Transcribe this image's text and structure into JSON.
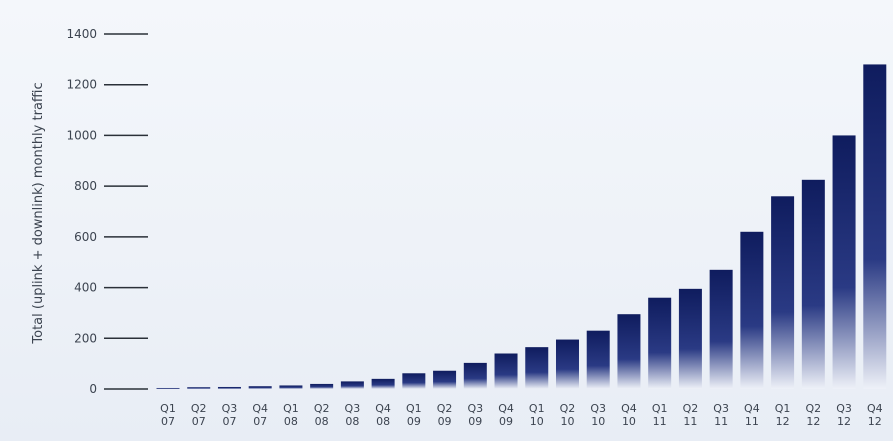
{
  "chart_data": {
    "type": "bar",
    "title": "",
    "xlabel": "",
    "ylabel": "Total (uplink + downlink) monthly traffic",
    "ylim": [
      0,
      1400
    ],
    "yticks": [
      0,
      200,
      400,
      600,
      800,
      1000,
      1200,
      1400
    ],
    "categories": [
      [
        "Q1",
        "07"
      ],
      [
        "Q2",
        "07"
      ],
      [
        "Q3",
        "07"
      ],
      [
        "Q4",
        "07"
      ],
      [
        "Q1",
        "08"
      ],
      [
        "Q2",
        "08"
      ],
      [
        "Q3",
        "08"
      ],
      [
        "Q4",
        "08"
      ],
      [
        "Q1",
        "09"
      ],
      [
        "Q2",
        "09"
      ],
      [
        "Q3",
        "09"
      ],
      [
        "Q4",
        "09"
      ],
      [
        "Q1",
        "10"
      ],
      [
        "Q2",
        "10"
      ],
      [
        "Q3",
        "10"
      ],
      [
        "Q4",
        "10"
      ],
      [
        "Q1",
        "11"
      ],
      [
        "Q2",
        "11"
      ],
      [
        "Q3",
        "11"
      ],
      [
        "Q4",
        "11"
      ],
      [
        "Q1",
        "12"
      ],
      [
        "Q2",
        "12"
      ],
      [
        "Q3",
        "12"
      ],
      [
        "Q4",
        "12"
      ]
    ],
    "values": [
      4,
      7,
      8,
      11,
      14,
      20,
      30,
      40,
      62,
      72,
      103,
      140,
      165,
      195,
      230,
      295,
      360,
      395,
      470,
      620,
      760,
      825,
      1000,
      1280
    ],
    "grid": false,
    "colors": {
      "bar_top": "#0f1c5e",
      "bar_bottom": "#eef1f8",
      "tick_line": "#2a3038"
    }
  }
}
